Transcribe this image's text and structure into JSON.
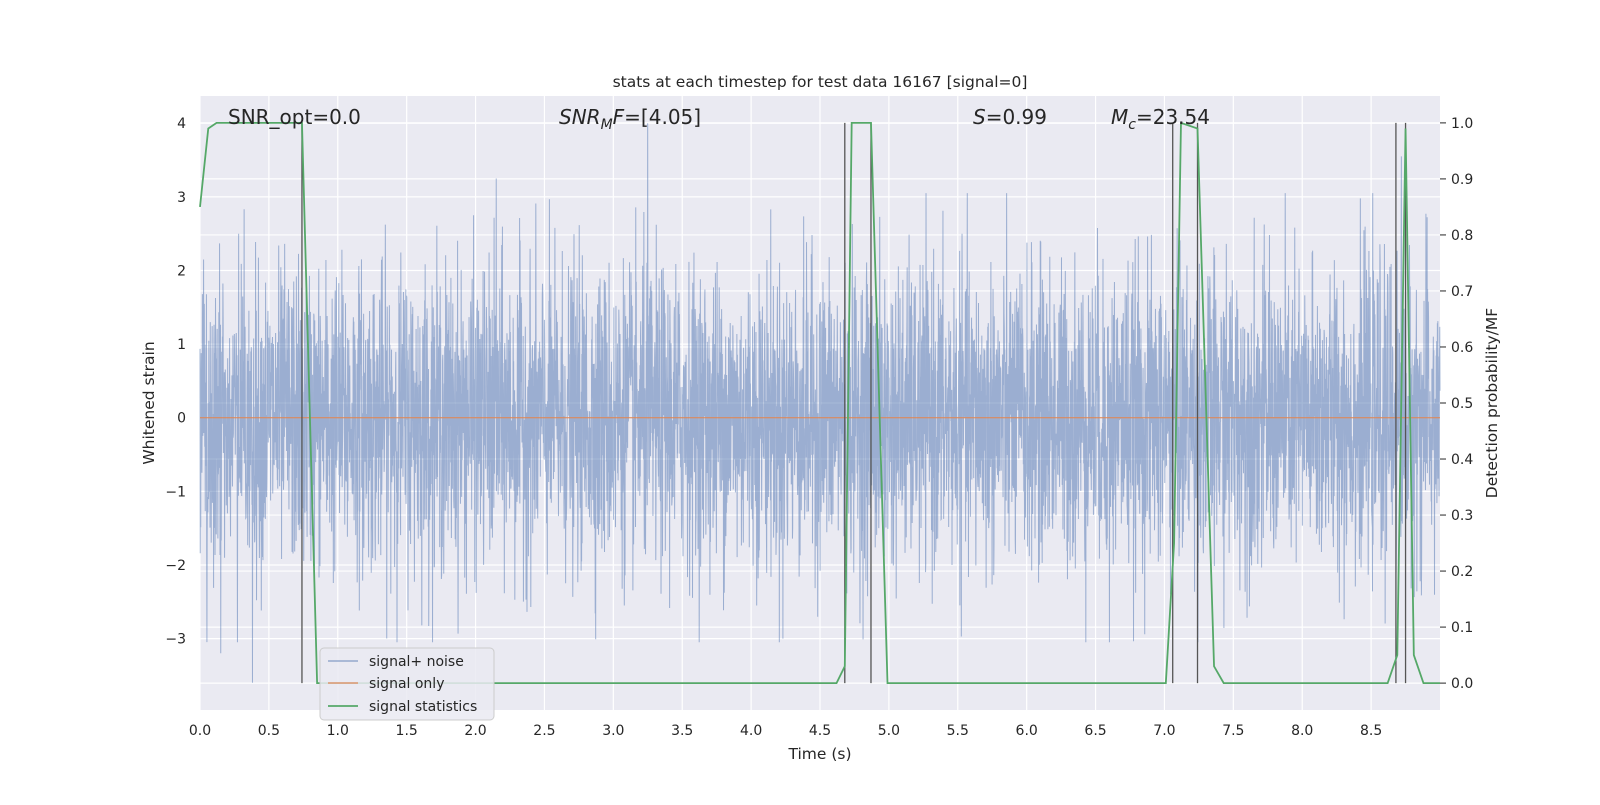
{
  "chart_data": {
    "type": "line",
    "title": "stats at each timestep for test data 16167 [signal=0]",
    "xlabel": "Time (s)",
    "ylabel": "Whitened strain",
    "y2label": "Detection probability/MF",
    "xlim": [
      0.0,
      9.0
    ],
    "ylim": [
      -3.97,
      4.37
    ],
    "y2lim": [
      -0.048,
      1.048
    ],
    "x_ticks": [
      "0.0",
      "0.5",
      "1.0",
      "1.5",
      "2.0",
      "2.5",
      "3.0",
      "3.5",
      "4.0",
      "4.5",
      "5.0",
      "5.5",
      "6.0",
      "6.5",
      "7.0",
      "7.5",
      "8.0",
      "8.5"
    ],
    "y_ticks": [
      "4",
      "3",
      "2",
      "1",
      "0",
      "−1",
      "−2",
      "−3"
    ],
    "y2_ticks": [
      "1.0",
      "0.9",
      "0.8",
      "0.7",
      "0.6",
      "0.5",
      "0.4",
      "0.3",
      "0.2",
      "0.1",
      "0.0"
    ],
    "grid": true,
    "legend_position": "lower-left",
    "colors": {
      "background": "#eaeaf2",
      "grid": "#ffffff",
      "noise": "#4c72b0",
      "signal_only": "#dd8452",
      "statistics": "#55a868",
      "mf_lines": "#555555"
    },
    "annotations": {
      "snr_opt": "SNR_opt=0.0",
      "snr_mf": "=[4.05]",
      "s_value": "=0.99",
      "mc_value": "=23.54"
    },
    "series": [
      {
        "name": "signal+ noise",
        "description": "whitened strain noise, std approx 1, extremes about 4 near t=3.25 and -3.6 near t=0.38"
      },
      {
        "name": "signal only",
        "values": "constant 0"
      },
      {
        "name": "signal statistics",
        "axis": "right",
        "x": [
          0.0,
          0.06,
          0.12,
          0.74,
          0.85,
          0.88,
          4.62,
          4.68,
          4.73,
          4.87,
          4.99,
          7.01,
          7.07,
          7.12,
          7.24,
          7.36,
          7.43,
          8.62,
          8.69,
          8.75,
          8.81,
          8.88,
          9.0
        ],
        "values": [
          0.85,
          0.99,
          1.0,
          1.0,
          0.0,
          0.0,
          0.0,
          0.03,
          1.0,
          1.0,
          0.0,
          0.0,
          0.25,
          1.0,
          0.99,
          0.03,
          0.0,
          0.0,
          0.05,
          0.99,
          0.05,
          0.0,
          0.0
        ]
      },
      {
        "name": "MF trigger lines",
        "axis": "right",
        "x": [
          0.74,
          4.68,
          4.87,
          7.06,
          7.24,
          8.68,
          8.75
        ],
        "range": [
          0.0,
          1.0
        ]
      }
    ],
    "noise_extremes": [
      {
        "x": 3.25,
        "y": 4.0
      },
      {
        "x": 2.15,
        "y": 3.25
      },
      {
        "x": 0.38,
        "y": -3.6
      },
      {
        "x": 0.15,
        "y": -3.2
      },
      {
        "x": 4.23,
        "y": -3.0
      },
      {
        "x": 6.6,
        "y": -3.05
      },
      {
        "x": 8.72,
        "y": 3.55
      }
    ]
  },
  "legend": {
    "items": [
      {
        "label": "signal+ noise"
      },
      {
        "label": "signal only"
      },
      {
        "label": "signal statistics"
      }
    ]
  }
}
